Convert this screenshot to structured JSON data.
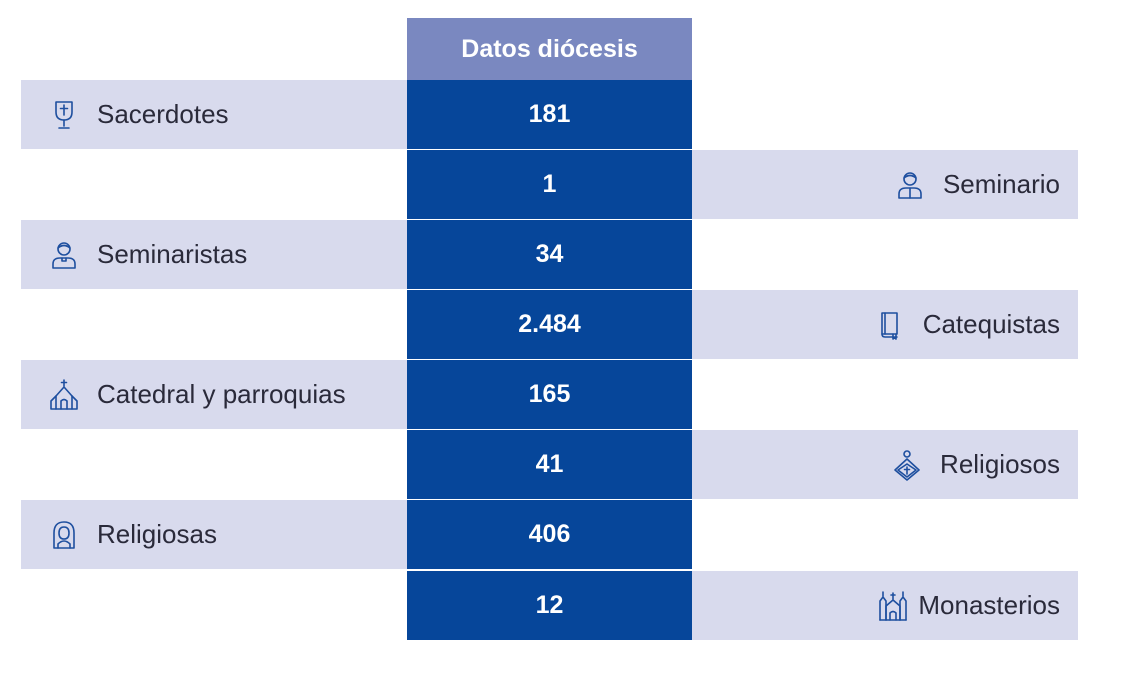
{
  "header": {
    "title": "Datos diócesis"
  },
  "rows": [
    {
      "label": "Sacerdotes",
      "value": "181",
      "icon": "chalice-icon",
      "side": "left"
    },
    {
      "label": "Seminario",
      "value": "1",
      "icon": "person-icon",
      "side": "right"
    },
    {
      "label": "Seminaristas",
      "value": "34",
      "icon": "seminarian-icon",
      "side": "left"
    },
    {
      "label": "Catequistas",
      "value": "2.484",
      "icon": "book-icon",
      "side": "right"
    },
    {
      "label": "Catedral y parroquias",
      "value": "165",
      "icon": "church-icon",
      "side": "left"
    },
    {
      "label": "Religiosos",
      "value": "41",
      "icon": "religious-icon",
      "side": "right"
    },
    {
      "label": "Religiosas",
      "value": "406",
      "icon": "nun-icon",
      "side": "left"
    },
    {
      "label": "Monasterios",
      "value": "12",
      "icon": "monastery-icon",
      "side": "right"
    }
  ],
  "colors": {
    "header_bg": "#7a88c0",
    "value_bg": "#06469a",
    "label_bg": "#d8daed",
    "icon": "#1e4f9f"
  }
}
